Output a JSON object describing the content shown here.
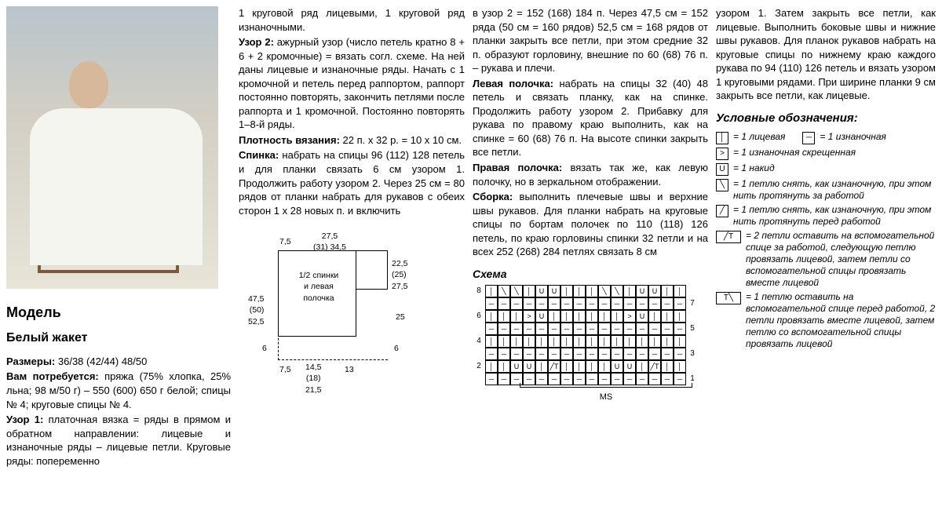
{
  "model_label": "Модель",
  "subtitle": "Белый жакет",
  "col1": {
    "sizes_label": "Размеры:",
    "sizes": "36/38 (42/44) 48/50",
    "need_label": "Вам потребуется:",
    "need": "пряжа (75% хлопка, 25% льна; 98 м/50 г) – 550 (600) 650 г белой; спицы № 4; круговые спицы № 4.",
    "uzor1_label": "Узор 1:",
    "uzor1": "платочная вязка = ряды в прямом и обратном направлении: лицевые и изнаночные ряды – лицевые петли. Круговые ряды: попеременно"
  },
  "col2": {
    "p1": "1 круговой ряд лицевыми, 1 круговой ряд изнаночными.",
    "uzor2_label": "Узор 2:",
    "uzor2": "ажурный узор (число петель кратно 8 + 6 + 2 кромочные) = вязать согл. схеме. На ней даны лицевые и изнаночные ряды. Начать с 1 кромочной и петель перед раппортом, раппорт постоянно повторять, закончить петлями после раппорта и 1 кромочной. Постоянно повторять 1–8-й ряды.",
    "density_label": "Плотность вязания:",
    "density": "22 п. х 32 р. = 10 х 10 см.",
    "back_label": "Спинка:",
    "back": "набрать на спицы 96 (112) 128 петель и для планки связать 6 см узором 1. Продолжить работу узором 2. Через 25 см = 80 рядов от планки набрать для рукавов с обеих сторон 1 х 28 новых п. и включить"
  },
  "col3": {
    "p1": "в узор 2 = 152 (168) 184 п. Через 47,5 см = 152 ряда (50 см = 160 рядов) 52,5 см = 168 рядов от планки закрыть все петли, при этом средние 32 п. образуют горловину, внешние по 60 (68) 76 п. – рукава и плечи.",
    "left_label": "Левая полочка:",
    "left": "набрать на спицы 32 (40) 48 петель и связать планку, как на спинке. Продолжить работу узором 2. Прибавку для рукава по правому краю выполнить, как на спинке = 60 (68) 76 п. На высоте спинки закрыть все петли.",
    "right_label": "Правая полочка:",
    "right": "вязать так же, как левую полочку, но в зеркальном отображении.",
    "assembly_label": "Сборка:",
    "assembly": "выполнить плечевые швы и верхние швы рукавов. Для планки набрать на круговые спицы по бортам полочек по 110 (118) 126 петель, по краю горловины спинки 32 петли и на всех 252 (268) 284 петлях связать 8 см"
  },
  "col4": {
    "p1": "узором 1. Затем закрыть все петли, как лицевые. Выполнить боковые швы и нижние швы рукавов. Для планок рукавов набрать на круговые спицы по нижнему краю каждого рукава по 94 (110) 126 петель и вязать узором 1 круговыми рядами. При ширине планки 9 см закрыть все петли, как лицевые."
  },
  "schematic": {
    "top_left": "7,5",
    "top_mid": "27,5\n(31) 34,5",
    "center": "1/2 спинки\nи левая\nполочка",
    "left_h": "47,5\n(50)\n52,5",
    "right_top": "22,5\n(25)\n27,5",
    "right_mid": "25",
    "bot_left": "6",
    "bot_left2": "7,5",
    "bot_mid": "14,5\n(18)\n21,5",
    "bot_right": "13",
    "bot_far": "6"
  },
  "schema": {
    "title": "Схема",
    "rows": [
      {
        "left": "8",
        "cells": [
          "│",
          "╲",
          "╲",
          "│",
          "U",
          "U",
          "│",
          "│",
          "│",
          "╲",
          "╲",
          "│",
          "U",
          "U",
          "│",
          "│"
        ],
        "right": ""
      },
      {
        "left": "",
        "cells": [
          "─",
          "─",
          "─",
          "─",
          "─",
          "─",
          "─",
          "─",
          "─",
          "─",
          "─",
          "─",
          "─",
          "─",
          "─",
          "─"
        ],
        "right": "7"
      },
      {
        "left": "6",
        "cells": [
          "│",
          "│",
          "│",
          ">",
          "U",
          "│",
          "│",
          "│",
          "│",
          "│",
          "│",
          ">",
          "U",
          "│",
          "│",
          "│"
        ],
        "right": ""
      },
      {
        "left": "",
        "cells": [
          "─",
          "─",
          "─",
          "─",
          "─",
          "─",
          "─",
          "─",
          "─",
          "─",
          "─",
          "─",
          "─",
          "─",
          "─",
          "─"
        ],
        "right": "5"
      },
      {
        "left": "4",
        "cells": [
          "│",
          "│",
          "│",
          "│",
          "│",
          "│",
          "│",
          "│",
          "│",
          "│",
          "│",
          "│",
          "│",
          "│",
          "│",
          "│"
        ],
        "right": ""
      },
      {
        "left": "",
        "cells": [
          "─",
          "─",
          "─",
          "─",
          "─",
          "─",
          "─",
          "─",
          "─",
          "─",
          "─",
          "─",
          "─",
          "─",
          "─",
          "─"
        ],
        "right": "3"
      },
      {
        "left": "2",
        "cells": [
          "│",
          "│",
          "U",
          "U",
          "│",
          "╱T",
          "│",
          "│",
          "│",
          "│",
          "U",
          "U",
          "│",
          "╱T",
          "│",
          "│"
        ],
        "right": ""
      },
      {
        "left": "",
        "cells": [
          "─",
          "─",
          "─",
          "─",
          "─",
          "─",
          "─",
          "─",
          "─",
          "─",
          "─",
          "─",
          "─",
          "─",
          "─",
          "─"
        ],
        "right": "1"
      }
    ],
    "ms": "MS"
  },
  "legend": {
    "title": "Условные обозначения:",
    "items": [
      {
        "sym": "│",
        "text": "= 1 лицевая",
        "sym2": "─",
        "text2": "= 1 изнаночная"
      },
      {
        "sym": ">",
        "text": "= 1 изнаночная скрещенная"
      },
      {
        "sym": "U",
        "text": "= 1 накид"
      },
      {
        "sym": "╲",
        "text": "= 1 петлю снять, как изнаночную, при этом нить протянуть за работой"
      },
      {
        "sym": "╱",
        "text": "= 1 петлю снять, как изнаночную, при этом нить протянуть перед работой"
      },
      {
        "sym": "╱T",
        "wide": true,
        "text": "= 2 петли оставить на вспомогательной спице за работой, следующую петлю провязать лицевой, затем петли со вспомогательной спицы провязать вместе лицевой"
      },
      {
        "sym": "T╲",
        "wide": true,
        "text": "= 1 петлю оставить на вспомогательной спице перед работой, 2 петли провязать вместе лицевой, затем петлю со вспомогательной спицы провязать лицевой"
      }
    ]
  }
}
